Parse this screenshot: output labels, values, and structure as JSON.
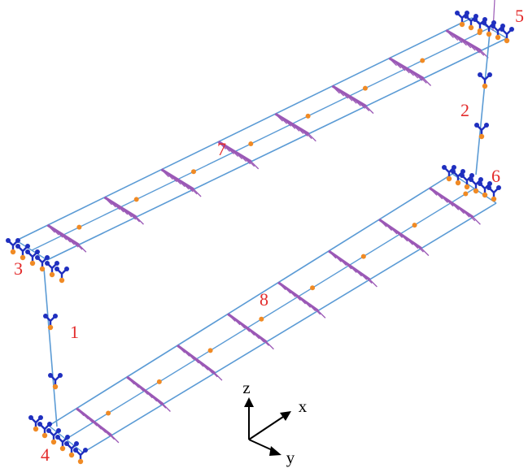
{
  "labels": {
    "element_1": "1",
    "element_2": "2",
    "node_3": "3",
    "node_4": "4",
    "node_5": "5",
    "node_6": "6",
    "element_7": "7",
    "element_8": "8"
  },
  "axes": {
    "z": "z",
    "x": "x",
    "y": "y"
  },
  "colors": {
    "beam": "#5b9bd5",
    "load_hatch": "#9b59b6",
    "node_point": "#f08a24",
    "support_blue": "#1f2fbf",
    "label": "#e32b2b",
    "axis": "#000000"
  }
}
